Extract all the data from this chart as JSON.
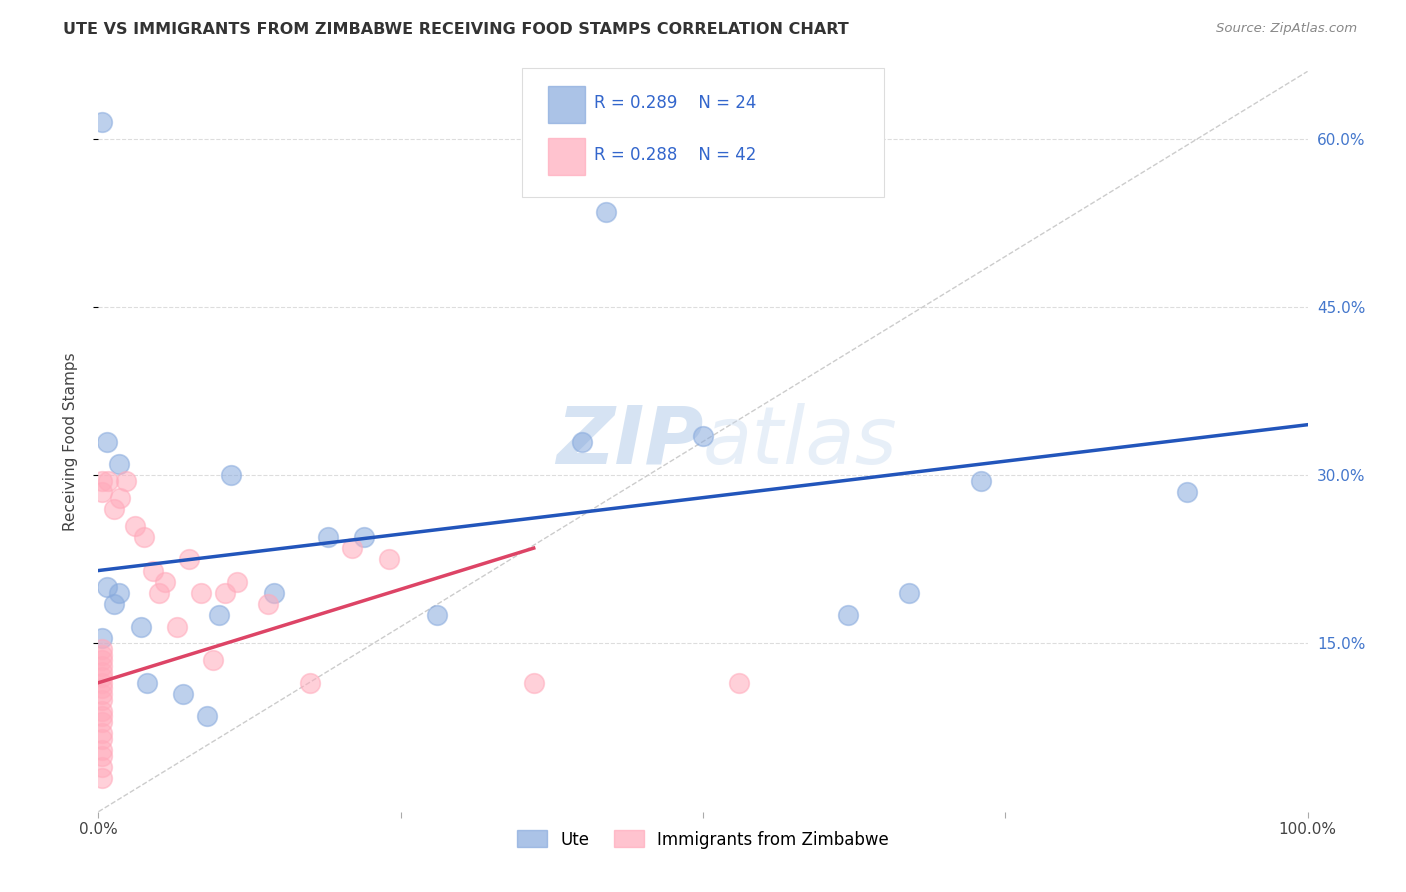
{
  "title": "UTE VS IMMIGRANTS FROM ZIMBABWE RECEIVING FOOD STAMPS CORRELATION CHART",
  "source": "Source: ZipAtlas.com",
  "ylabel": "Receiving Food Stamps",
  "xlim": [
    0,
    1.0
  ],
  "ylim": [
    0,
    0.66
  ],
  "background_color": "#ffffff",
  "watermark": "ZIPatlas",
  "legend_label1": "Ute",
  "legend_label2": "Immigrants from Zimbabwe",
  "blue_color": "#88aadd",
  "pink_color": "#ffaabb",
  "trend_blue": "#2255bb",
  "trend_pink": "#dd4466",
  "ref_line_color": "#cccccc",
  "blue_scatter_x": [
    0.003,
    0.42,
    0.007,
    0.017,
    0.007,
    0.017,
    0.013,
    0.003,
    0.11,
    0.145,
    0.1,
    0.035,
    0.04,
    0.19,
    0.22,
    0.67,
    0.73,
    0.9,
    0.62,
    0.4,
    0.28,
    0.07,
    0.09,
    0.5
  ],
  "blue_scatter_y": [
    0.615,
    0.535,
    0.33,
    0.31,
    0.2,
    0.195,
    0.185,
    0.155,
    0.3,
    0.195,
    0.175,
    0.165,
    0.115,
    0.245,
    0.245,
    0.195,
    0.295,
    0.285,
    0.175,
    0.33,
    0.175,
    0.105,
    0.085,
    0.335
  ],
  "pink_scatter_x": [
    0.003,
    0.003,
    0.003,
    0.003,
    0.003,
    0.003,
    0.003,
    0.003,
    0.003,
    0.003,
    0.003,
    0.003,
    0.003,
    0.003,
    0.003,
    0.003,
    0.003,
    0.003,
    0.003,
    0.003,
    0.003,
    0.008,
    0.013,
    0.018,
    0.023,
    0.03,
    0.038,
    0.045,
    0.05,
    0.055,
    0.065,
    0.075,
    0.085,
    0.095,
    0.105,
    0.115,
    0.14,
    0.175,
    0.21,
    0.24,
    0.36,
    0.53
  ],
  "pink_scatter_y": [
    0.03,
    0.04,
    0.05,
    0.055,
    0.065,
    0.07,
    0.08,
    0.085,
    0.09,
    0.1,
    0.105,
    0.11,
    0.115,
    0.12,
    0.125,
    0.13,
    0.135,
    0.14,
    0.145,
    0.285,
    0.295,
    0.295,
    0.27,
    0.28,
    0.295,
    0.255,
    0.245,
    0.215,
    0.195,
    0.205,
    0.165,
    0.225,
    0.195,
    0.135,
    0.195,
    0.205,
    0.185,
    0.115,
    0.235,
    0.225,
    0.115,
    0.115
  ],
  "blue_trendline_x": [
    0.0,
    1.0
  ],
  "blue_trendline_y": [
    0.215,
    0.345
  ],
  "pink_trendline_x": [
    0.0,
    0.36
  ],
  "pink_trendline_y": [
    0.115,
    0.235
  ],
  "ref_line_x": [
    0.0,
    1.0
  ],
  "ref_line_y": [
    0.0,
    0.66
  ],
  "yticks": [
    0.15,
    0.3,
    0.45,
    0.6
  ],
  "ytick_labels": [
    "15.0%",
    "30.0%",
    "45.0%",
    "60.0%"
  ]
}
